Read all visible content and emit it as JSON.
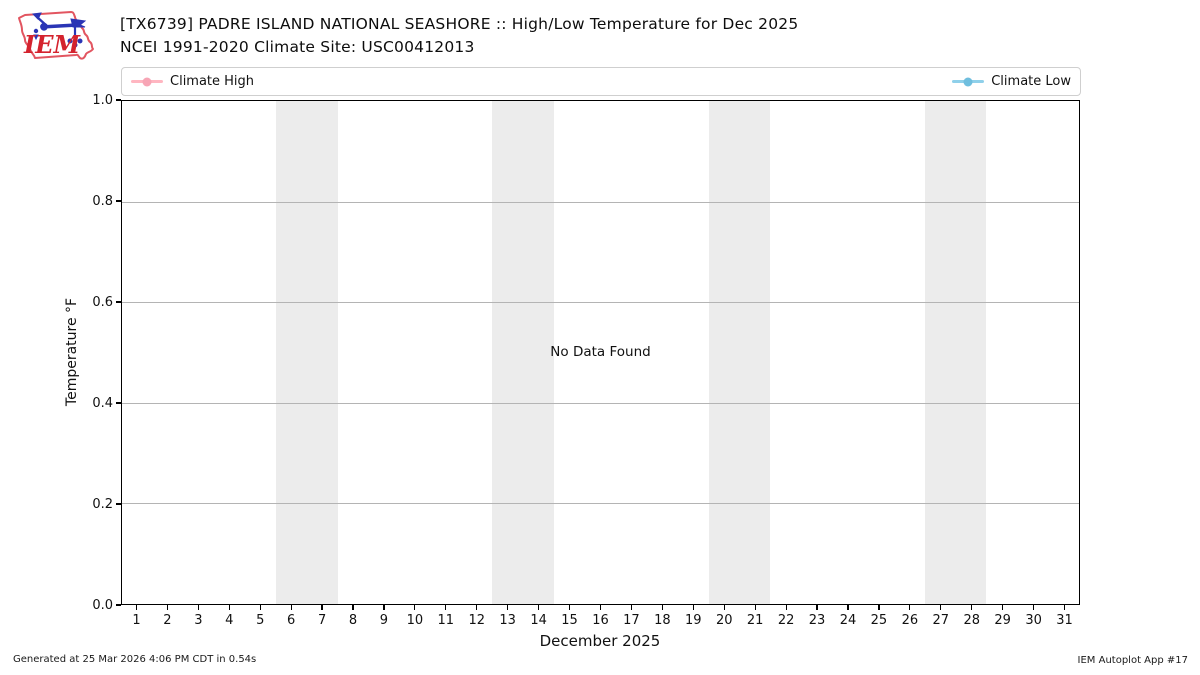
{
  "header": {
    "title_line1": "[TX6739] PADRE ISLAND NATIONAL SEASHORE :: High/Low Temperature for Dec 2025",
    "title_line2": "NCEI 1991-2020 Climate Site: USC00412013",
    "logo_text": "IEM"
  },
  "legend": {
    "items": [
      {
        "label": "Climate High",
        "line_color": "#ffb6c1",
        "dot_color": "#f7a5b5"
      },
      {
        "label": "Climate Low",
        "line_color": "#8fd0ea",
        "dot_color": "#6fbede"
      }
    ]
  },
  "chart_data": {
    "type": "line",
    "title": "[TX6739] PADRE ISLAND NATIONAL SEASHORE :: High/Low Temperature for Dec 2025",
    "subtitle": "NCEI 1991-2020 Climate Site: USC00412013",
    "annotation": "No Data Found",
    "xlabel": "December 2025",
    "ylabel": "Temperature °F",
    "xlim": [
      0.5,
      31.5
    ],
    "ylim": [
      0.0,
      1.0
    ],
    "x": [
      1,
      2,
      3,
      4,
      5,
      6,
      7,
      8,
      9,
      10,
      11,
      12,
      13,
      14,
      15,
      16,
      17,
      18,
      19,
      20,
      21,
      22,
      23,
      24,
      25,
      26,
      27,
      28,
      29,
      30,
      31
    ],
    "xtick_labels": [
      "1",
      "2",
      "3",
      "4",
      "5",
      "6",
      "7",
      "8",
      "9",
      "10",
      "11",
      "12",
      "13",
      "14",
      "15",
      "16",
      "17",
      "18",
      "19",
      "20",
      "21",
      "22",
      "23",
      "24",
      "25",
      "26",
      "27",
      "28",
      "29",
      "30",
      "31"
    ],
    "yticks": [
      0.0,
      0.2,
      0.4,
      0.6,
      0.8,
      1.0
    ],
    "ytick_labels": [
      "0.0",
      "0.2",
      "0.4",
      "0.6",
      "0.8",
      "1.0"
    ],
    "grid": "horizontal",
    "legend_position": "top-expanded",
    "series": [
      {
        "name": "Climate High",
        "color": "#ffb6c1",
        "values": []
      },
      {
        "name": "Climate Low",
        "color": "#8fd0ea",
        "values": []
      }
    ],
    "weekend_bands": [
      [
        5.5,
        7.5
      ],
      [
        12.5,
        14.5
      ],
      [
        19.5,
        21.5
      ],
      [
        26.5,
        28.5
      ]
    ],
    "band_color": "#ececec"
  },
  "footer": {
    "left": "Generated at 25 Mar 2026 4:06 PM CDT in 0.54s",
    "right": "IEM Autoplot App #17"
  }
}
